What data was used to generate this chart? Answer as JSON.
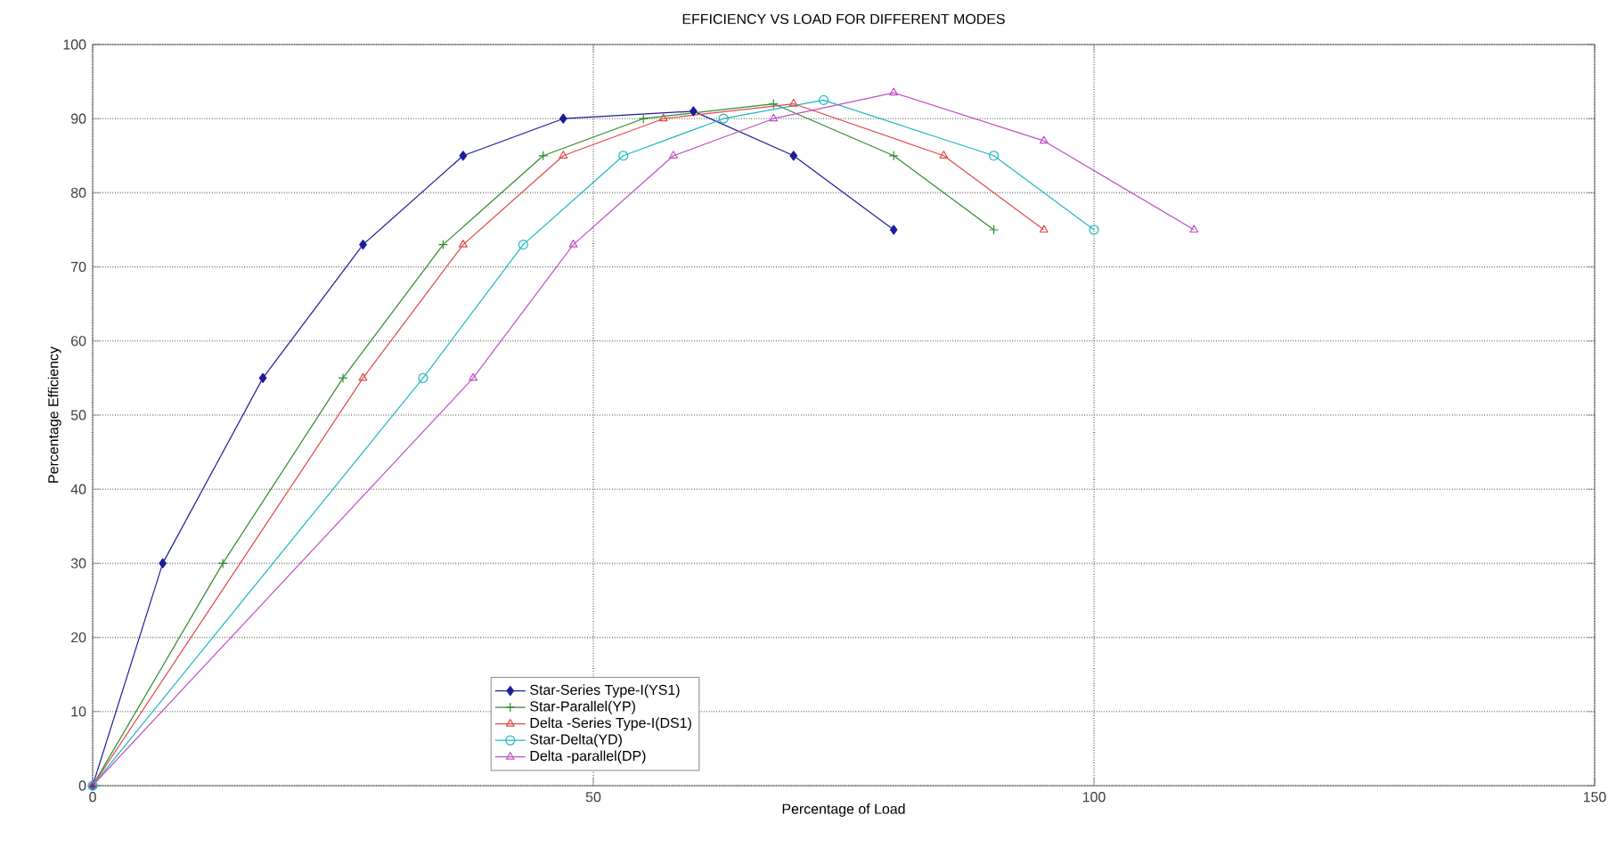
{
  "chart_data": {
    "type": "line",
    "title": "EFFICIENCY VS LOAD FOR DIFFERENT MODES",
    "xlabel": "Percentage of Load",
    "ylabel": "Percentage Efficiency",
    "xlim": [
      0,
      150
    ],
    "xticks": [
      0,
      50,
      100,
      150
    ],
    "ylim": [
      0,
      100
    ],
    "yticks": [
      0,
      10,
      20,
      30,
      40,
      50,
      60,
      70,
      80,
      90,
      100
    ],
    "grid": true,
    "legend": "bottom",
    "line_style": "solid",
    "series": [
      {
        "name": "Star-Series Type-I(YS1)",
        "color": "#1c1c9c",
        "marker": "diamond",
        "x": [
          0,
          7,
          17,
          27,
          37,
          47,
          60,
          70,
          80
        ],
        "values": [
          0,
          30,
          55,
          73,
          85,
          90,
          91,
          85,
          75
        ]
      },
      {
        "name": "Star-Parallel(YP)",
        "color": "#2e8b2e",
        "marker": "cross",
        "x": [
          0,
          13,
          25,
          35,
          45,
          55,
          68,
          80,
          90
        ],
        "values": [
          0,
          30,
          55,
          73,
          85,
          90,
          92,
          85,
          75
        ]
      },
      {
        "name": "Delta -Series Type-I(DS1)",
        "color": "#e04848",
        "marker": "triangle",
        "x": [
          0,
          27,
          37,
          47,
          57,
          70,
          85,
          95
        ],
        "values": [
          0,
          55,
          73,
          85,
          90,
          92,
          85,
          75
        ]
      },
      {
        "name": "Star-Delta(YD)",
        "color": "#20b8c0",
        "marker": "circle",
        "x": [
          0,
          33,
          43,
          53,
          63,
          73,
          90,
          100
        ],
        "values": [
          0,
          55,
          73,
          85,
          90,
          92.5,
          85,
          75
        ]
      },
      {
        "name": "Delta -parallel(DP)",
        "color": "#c050c0",
        "marker": "triangle",
        "x": [
          0,
          38,
          48,
          58,
          68,
          80,
          95,
          110
        ],
        "values": [
          0,
          55,
          73,
          85,
          90,
          93.5,
          87,
          75
        ]
      }
    ]
  }
}
